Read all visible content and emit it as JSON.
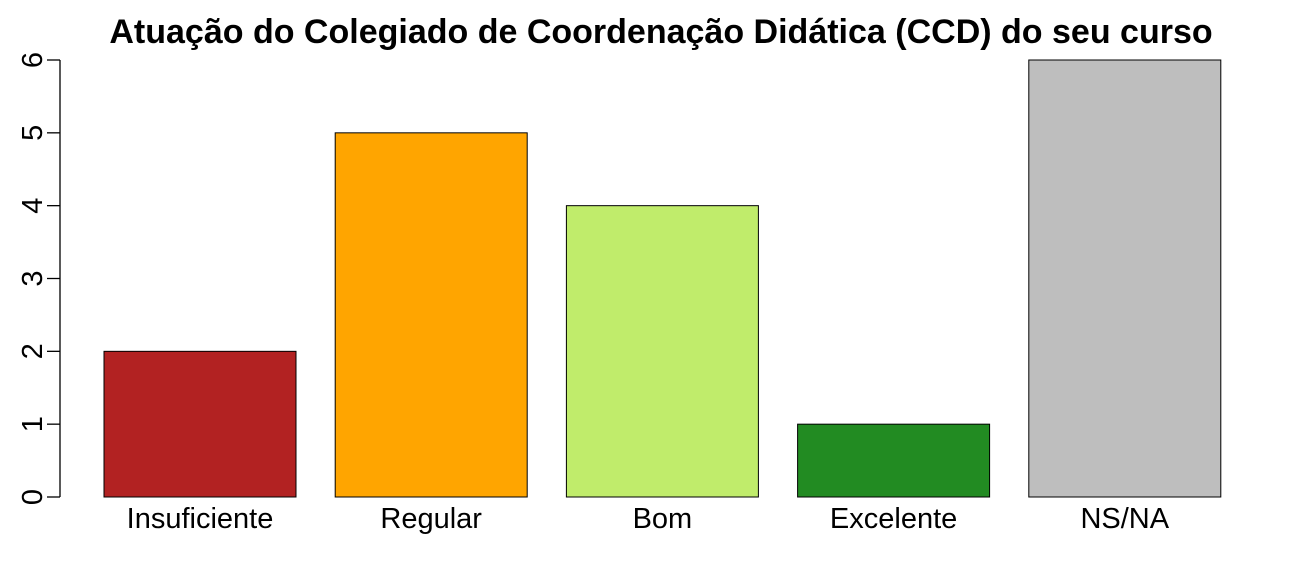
{
  "chart_data": {
    "type": "bar",
    "title": "Atuação do Colegiado de Coordenação Didática (CCD) do seu curso",
    "xlabel": "",
    "ylabel": "",
    "categories": [
      "Insuficiente",
      "Regular",
      "Bom",
      "Excelente",
      "NS/NA"
    ],
    "values": [
      2,
      5,
      4,
      1,
      6
    ],
    "colors": [
      "#B22222",
      "#FFA500",
      "#C0EC6B",
      "#228B22",
      "#BEBEBE"
    ],
    "ylim": [
      0,
      6
    ],
    "yticks": [
      "0",
      "1",
      "2",
      "3",
      "4",
      "5",
      "6"
    ],
    "grid": false,
    "legend": "none"
  }
}
